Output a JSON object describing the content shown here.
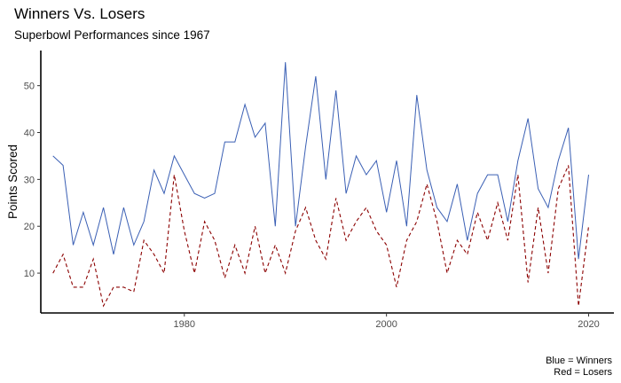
{
  "chart_data": {
    "type": "line",
    "title": "Winners Vs. Losers",
    "subtitle": "Superbowl Performances since 1967",
    "xlabel": "",
    "ylabel": "Points Scored",
    "xlim": [
      1965.8,
      2022.5
    ],
    "ylim": [
      1.5,
      57.5
    ],
    "xticks": [
      1980,
      2000,
      2020
    ],
    "yticks": [
      10,
      20,
      30,
      40,
      50
    ],
    "grid": false,
    "caption": [
      "Blue = Winners",
      "Red = Losers"
    ],
    "x": [
      1967,
      1968,
      1969,
      1970,
      1971,
      1972,
      1973,
      1974,
      1975,
      1976,
      1977,
      1978,
      1979,
      1980,
      1981,
      1982,
      1983,
      1984,
      1985,
      1986,
      1987,
      1988,
      1989,
      1990,
      1991,
      1992,
      1993,
      1994,
      1995,
      1996,
      1997,
      1998,
      1999,
      2000,
      2001,
      2002,
      2003,
      2004,
      2005,
      2006,
      2007,
      2008,
      2009,
      2010,
      2011,
      2012,
      2013,
      2014,
      2015,
      2016,
      2017,
      2018,
      2019,
      2020
    ],
    "series": [
      {
        "color": "#3a5fb4",
        "dash": "solid",
        "values": [
          35,
          33,
          16,
          23,
          16,
          24,
          14,
          24,
          16,
          21,
          32,
          27,
          35,
          31,
          27,
          26,
          27,
          38,
          38,
          46,
          39,
          42,
          20,
          55,
          20,
          37,
          52,
          30,
          49,
          27,
          35,
          31,
          34,
          23,
          34,
          20,
          48,
          32,
          24,
          21,
          29,
          17,
          27,
          31,
          31,
          21,
          34,
          43,
          28,
          24,
          34,
          41,
          13,
          31
        ]
      },
      {
        "color": "#8b0000",
        "dash": "dashed",
        "values": [
          10,
          14,
          7,
          7,
          13,
          3,
          7,
          7,
          6,
          17,
          14,
          10,
          31,
          19,
          10,
          21,
          17,
          9,
          16,
          10,
          20,
          10,
          16,
          10,
          19,
          24,
          17,
          13,
          26,
          17,
          21,
          24,
          19,
          16,
          7,
          17,
          21,
          29,
          21,
          10,
          17,
          14,
          23,
          17,
          25,
          17,
          31,
          8,
          24,
          10,
          28,
          33,
          3,
          20
        ]
      }
    ]
  }
}
